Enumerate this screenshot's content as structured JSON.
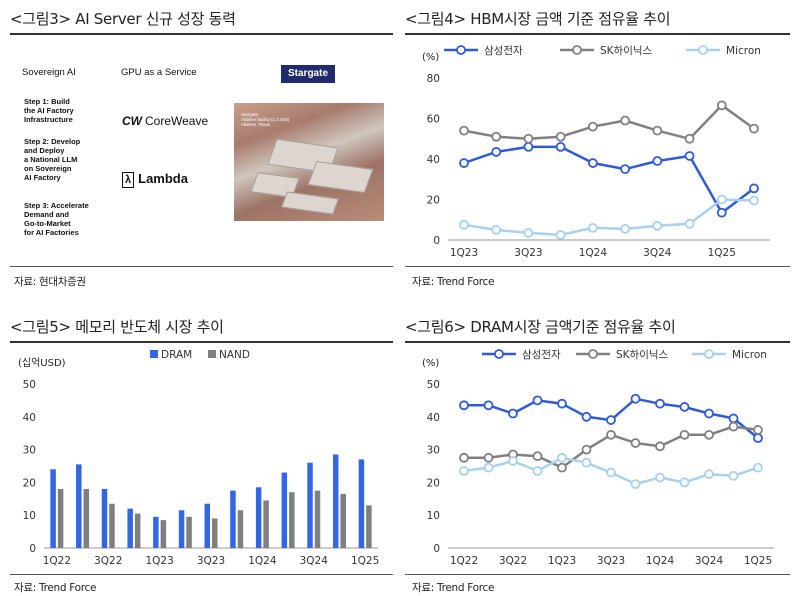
{
  "panels": {
    "p3": {
      "title": "<그림3> AI Server 신규 성장 동력",
      "source": "자료: 현대차증권",
      "sovereign_label": "Sovereign AI",
      "gpu_label": "GPU as a Service",
      "steps": [
        "Step 1: Build\nthe AI Factory\nInfrastructure",
        "Step 2: Develop\nand Deploy\na National LLM\non Sovereign\nAI Factory",
        "Step 3: Accelerate\nDemand and\nGo-to-Market\nfor AI Factories"
      ],
      "coreweave": "CoreWeave",
      "coreweave_mark": "CW",
      "lambda": "Lambda",
      "lambda_mark": "λ",
      "stargate": "Stargate",
      "photo_caption": "Stargate\nAbilene facility (1.2 GW)\nAbilene, Texas",
      "colors": {
        "stargate_bg": "#1f2b6b"
      }
    },
    "p4": {
      "title": "<그림4> HBM시장 금액 기준 점유율 추이",
      "source": "자료: Trend Force",
      "unit": "(%)"
    },
    "p5": {
      "title": "<그림5> 메모리 반도체 시장 추이",
      "source": "자료: Trend Force",
      "unit": "(십억USD)"
    },
    "p6": {
      "title": "<그림6> DRAM시장 금액기준 점유율 추이",
      "source": "자료: Trend Force",
      "unit": "(%)"
    }
  },
  "chart_data": [
    {
      "id": "hbm",
      "type": "line",
      "x": [
        "1Q23",
        "2Q23",
        "3Q23",
        "4Q23",
        "1Q24",
        "2Q24",
        "3Q24",
        "4Q24",
        "1Q25",
        "2Q25"
      ],
      "tick_labels": [
        "1Q23",
        "",
        "3Q23",
        "",
        "1Q24",
        "",
        "3Q24",
        "",
        "1Q25",
        ""
      ],
      "ylim": [
        0,
        80
      ],
      "yticks": [
        0,
        20,
        40,
        60,
        80
      ],
      "grid": false,
      "legend": "top",
      "series": [
        {
          "name": "삼성전자",
          "color": "#2f5bd6",
          "values": [
            38,
            43.5,
            46,
            46,
            38,
            35,
            39,
            41.5,
            13.5,
            25.5
          ]
        },
        {
          "name": "SK하이닉스",
          "color": "#808080",
          "values": [
            54,
            51,
            50,
            51,
            56,
            59,
            54,
            50,
            66.5,
            55
          ]
        },
        {
          "name": "Micron",
          "color": "#a8d0ef",
          "values": [
            7.5,
            5,
            3.5,
            2.5,
            6,
            5.5,
            7,
            8,
            20,
            19.5
          ]
        }
      ]
    },
    {
      "id": "memory",
      "type": "bar",
      "x": [
        "1Q22",
        "2Q22",
        "3Q22",
        "4Q22",
        "1Q23",
        "2Q23",
        "3Q23",
        "4Q23",
        "1Q24",
        "2Q24",
        "3Q24",
        "4Q24",
        "1Q25"
      ],
      "tick_labels": [
        "1Q22",
        "",
        "3Q22",
        "",
        "1Q23",
        "",
        "3Q23",
        "",
        "1Q24",
        "",
        "3Q24",
        "",
        "1Q25"
      ],
      "ylim": [
        0,
        50
      ],
      "yticks": [
        0,
        10,
        20,
        30,
        40,
        50
      ],
      "grid": false,
      "legend": "top",
      "series": [
        {
          "name": "DRAM",
          "color": "#3366e6",
          "values": [
            24,
            25.5,
            18,
            12,
            9.5,
            11.5,
            13.5,
            17.5,
            18.5,
            23,
            26,
            28.5,
            27
          ]
        },
        {
          "name": "NAND",
          "color": "#7f7f7f",
          "values": [
            18,
            18,
            13.5,
            10.5,
            8.5,
            9.5,
            9,
            11.5,
            14.5,
            17,
            17.5,
            16.5,
            13
          ]
        }
      ]
    },
    {
      "id": "dram",
      "type": "line",
      "x": [
        "1Q22",
        "2Q22",
        "3Q22",
        "4Q22",
        "1Q23",
        "2Q23",
        "3Q23",
        "4Q23",
        "1Q24",
        "2Q24",
        "3Q24",
        "4Q24",
        "1Q25"
      ],
      "tick_labels": [
        "1Q22",
        "",
        "3Q22",
        "",
        "1Q23",
        "",
        "3Q23",
        "",
        "1Q24",
        "",
        "3Q24",
        "",
        "1Q25"
      ],
      "ylim": [
        0,
        50
      ],
      "yticks": [
        0,
        10,
        20,
        30,
        40,
        50
      ],
      "grid": false,
      "legend": "top",
      "series": [
        {
          "name": "삼성전자",
          "color": "#2f5bd6",
          "values": [
            43.5,
            43.5,
            41,
            45,
            44,
            40,
            39,
            45.5,
            44,
            43,
            41,
            39.5,
            33.5
          ]
        },
        {
          "name": "SK하이닉스",
          "color": "#808080",
          "values": [
            27.5,
            27.5,
            28.5,
            28,
            24.5,
            30,
            34.5,
            32,
            31,
            34.5,
            34.5,
            37,
            36
          ]
        },
        {
          "name": "Micron",
          "color": "#a8d0ef",
          "values": [
            23.5,
            24.5,
            26.5,
            23.5,
            27.5,
            26,
            23,
            19.5,
            21.5,
            20,
            22.5,
            22,
            24.5
          ]
        }
      ]
    }
  ]
}
